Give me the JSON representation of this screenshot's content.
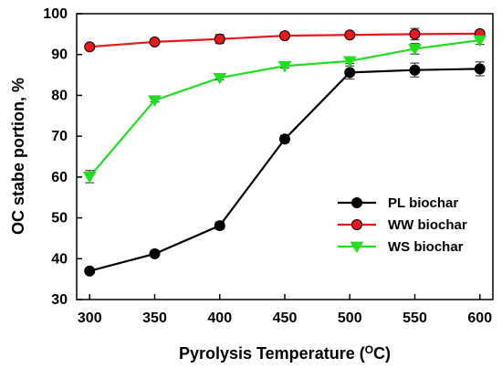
{
  "chart_data": {
    "type": "line",
    "xlabel": "Pyrolysis Temperature (",
    "xlabel_sup": "O",
    "xlabel_unit": "C)",
    "ylabel": "OC stabe portion, %",
    "x": [
      300,
      350,
      400,
      450,
      500,
      550,
      600
    ],
    "xlim": [
      290,
      610
    ],
    "ylim": [
      30,
      100
    ],
    "xticks": [
      300,
      350,
      400,
      450,
      500,
      550,
      600
    ],
    "yticks": [
      30,
      40,
      50,
      60,
      70,
      80,
      90,
      100
    ],
    "grid": false,
    "legend_position": "lower-right",
    "series": [
      {
        "name": "PL biochar",
        "color": "#000000",
        "marker": "circle",
        "values": [
          37.0,
          41.2,
          48.1,
          69.3,
          85.6,
          86.2,
          86.5
        ],
        "errors": [
          0.4,
          0.5,
          0.9,
          0.9,
          1.6,
          1.7,
          1.7
        ]
      },
      {
        "name": "WW biochar",
        "color": "#e41a1c",
        "marker": "circle",
        "values": [
          91.9,
          93.1,
          93.8,
          94.6,
          94.8,
          95.0,
          95.1
        ],
        "errors": [
          0.4,
          0.5,
          1.1,
          0.4,
          0.4,
          1.4,
          0.4
        ]
      },
      {
        "name": "WS biochar",
        "color": "#22dd22",
        "marker": "triangle-down",
        "values": [
          60.1,
          78.8,
          84.3,
          87.2,
          88.4,
          91.4,
          93.5
        ],
        "errors": [
          1.5,
          0.4,
          0.5,
          0.5,
          0.6,
          1.3,
          1.0
        ]
      }
    ]
  }
}
